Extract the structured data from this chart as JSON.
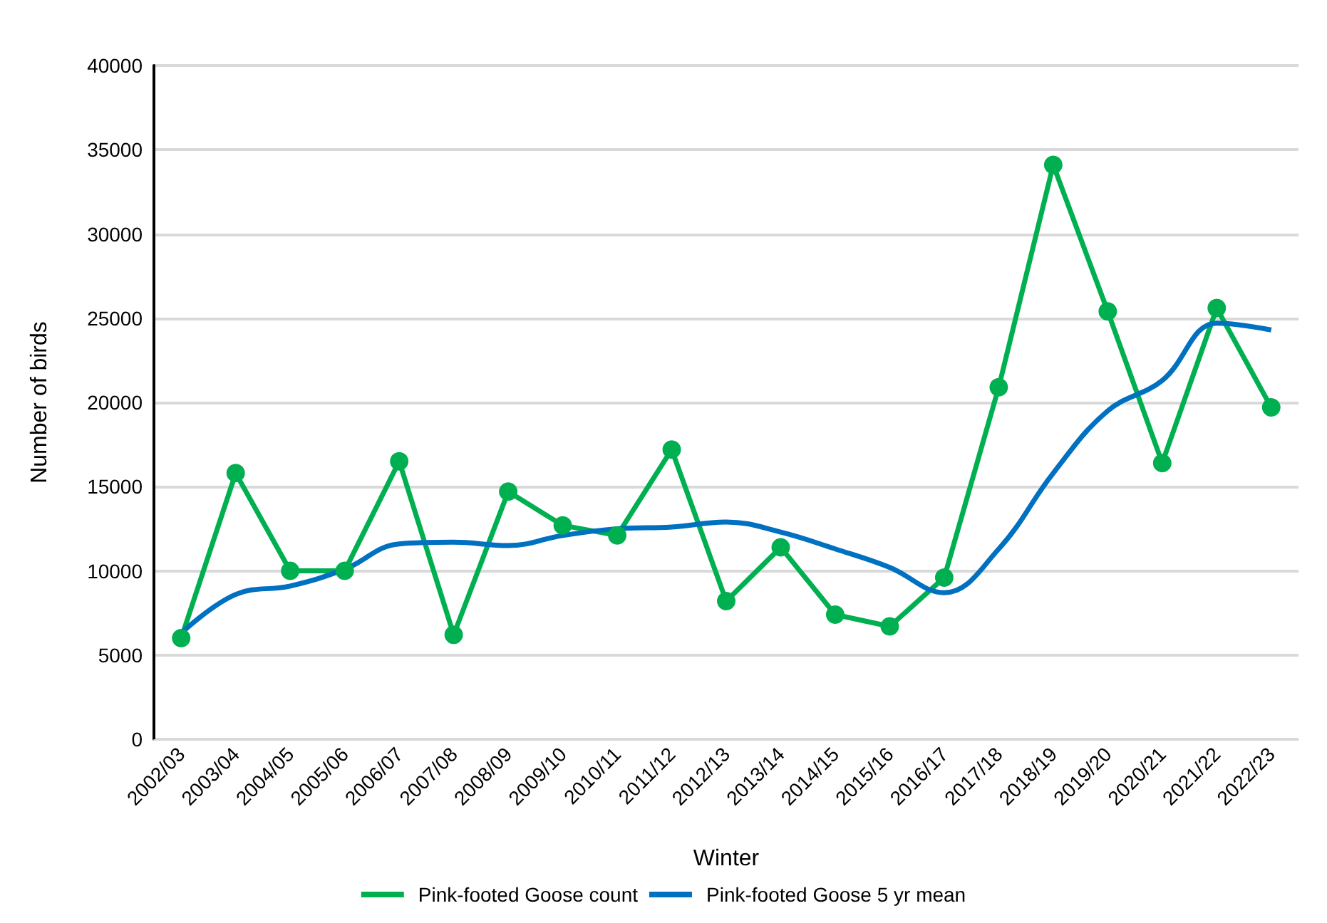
{
  "chart_data": {
    "type": "line",
    "xlabel": "Winter",
    "ylabel": "Number of birds",
    "categories": [
      "2002/03",
      "2003/04",
      "2004/05",
      "2005/06",
      "2006/07",
      "2007/08",
      "2008/09",
      "2009/10",
      "2010/11",
      "2011/12",
      "2012/13",
      "2013/14",
      "2014/15",
      "2015/16",
      "2016/17",
      "2017/18",
      "2018/19",
      "2019/20",
      "2020/21",
      "2021/22",
      "2022/23"
    ],
    "series": [
      {
        "name": "Pink-footed Goose count",
        "color": "#00b050",
        "marker": "circle",
        "values": [
          6000,
          15800,
          10000,
          10000,
          16500,
          6200,
          14700,
          12700,
          12100,
          17200,
          8200,
          11400,
          7400,
          6700,
          9600,
          20900,
          34100,
          25400,
          16400,
          25600,
          19700
        ]
      },
      {
        "name": "Pink-footed Goose 5 yr mean",
        "color": "#0070c0",
        "marker": "none",
        "values": [
          6300,
          8600,
          9100,
          10100,
          11600,
          11700,
          11500,
          12100,
          12500,
          12600,
          12900,
          12300,
          11300,
          10200,
          8700,
          11300,
          15800,
          19500,
          21300,
          24700,
          24300
        ]
      }
    ],
    "ylim": [
      0,
      40000
    ],
    "yticks": [
      0,
      5000,
      10000,
      15000,
      20000,
      25000,
      30000,
      35000,
      40000
    ],
    "grid": "y",
    "legend": "bottom"
  }
}
